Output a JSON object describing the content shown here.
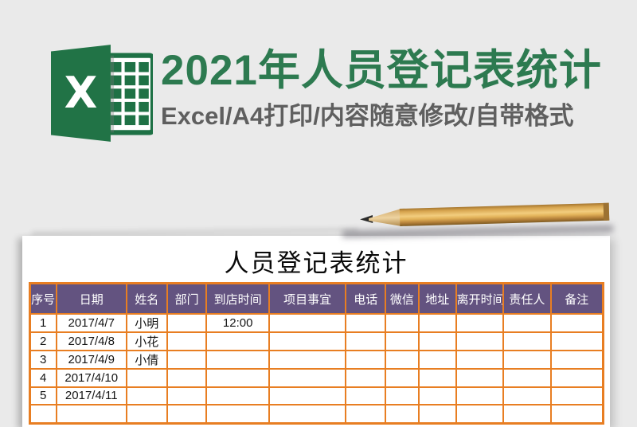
{
  "banner": {
    "title": "2021年人员登记表统计",
    "subtitle": "Excel/A4打印/内容随意修改/自带格式",
    "title_color": "#2d7a50",
    "subtitle_color": "#5f5f5f",
    "logo": {
      "icon": "excel-logo",
      "letter": "X",
      "green_dark": "#217346",
      "green_grid": "#1e7145"
    }
  },
  "decor": {
    "pencil_icon": "wooden-pencil",
    "wood_color": "#d7a54f",
    "tip_color": "#2b2b2b"
  },
  "sheet": {
    "title": "人员登记表统计",
    "header_bg": "#635380",
    "border_color": "#e87e22",
    "columns": [
      "序号",
      "日期",
      "姓名",
      "部门",
      "到店时间",
      "项目事宜",
      "电话",
      "微信",
      "地址",
      "离开时间",
      "责任人",
      "备注"
    ],
    "col_widths": [
      "4.7%",
      "12.2%",
      "7.1%",
      "6.9%",
      "10.9%",
      "13.4%",
      "6.9%",
      "5.8%",
      "6.5%",
      "8.2%",
      "8.4%",
      "9.0%"
    ],
    "rows": [
      [
        "1",
        "2017/4/7",
        "小明",
        "",
        "12:00",
        "",
        "",
        "",
        "",
        "",
        "",
        ""
      ],
      [
        "2",
        "2017/4/8",
        "小花",
        "",
        "",
        "",
        "",
        "",
        "",
        "",
        "",
        ""
      ],
      [
        "3",
        "2017/4/9",
        "小倩",
        "",
        "",
        "",
        "",
        "",
        "",
        "",
        "",
        ""
      ],
      [
        "4",
        "2017/4/10",
        "",
        "",
        "",
        "",
        "",
        "",
        "",
        "",
        "",
        ""
      ],
      [
        "5",
        "2017/4/11",
        "",
        "",
        "",
        "",
        "",
        "",
        "",
        "",
        "",
        ""
      ],
      [
        "",
        "",
        "",
        "",
        "",
        "",
        "",
        "",
        "",
        "",
        "",
        ""
      ]
    ]
  }
}
